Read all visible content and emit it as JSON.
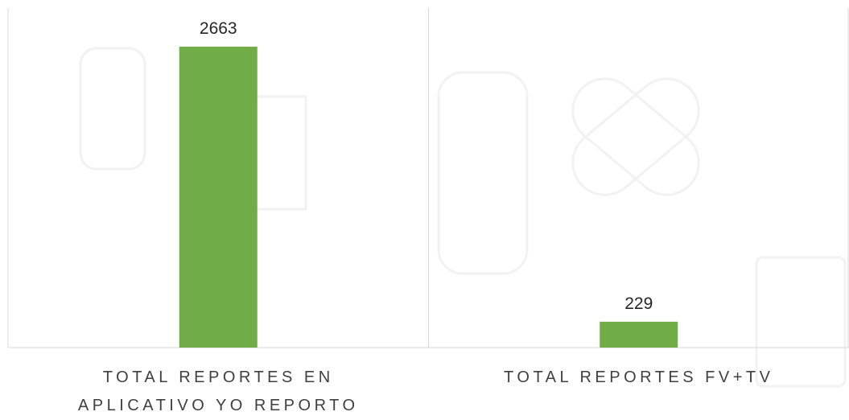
{
  "chart_data": {
    "type": "bar",
    "categories": [
      "TOTAL REPORTES EN APLICATIVO YO REPORTO",
      "TOTAL REPORTES FV+TV"
    ],
    "values": [
      2663,
      229
    ],
    "color": "#70ad47",
    "data_labels": true
  }
}
